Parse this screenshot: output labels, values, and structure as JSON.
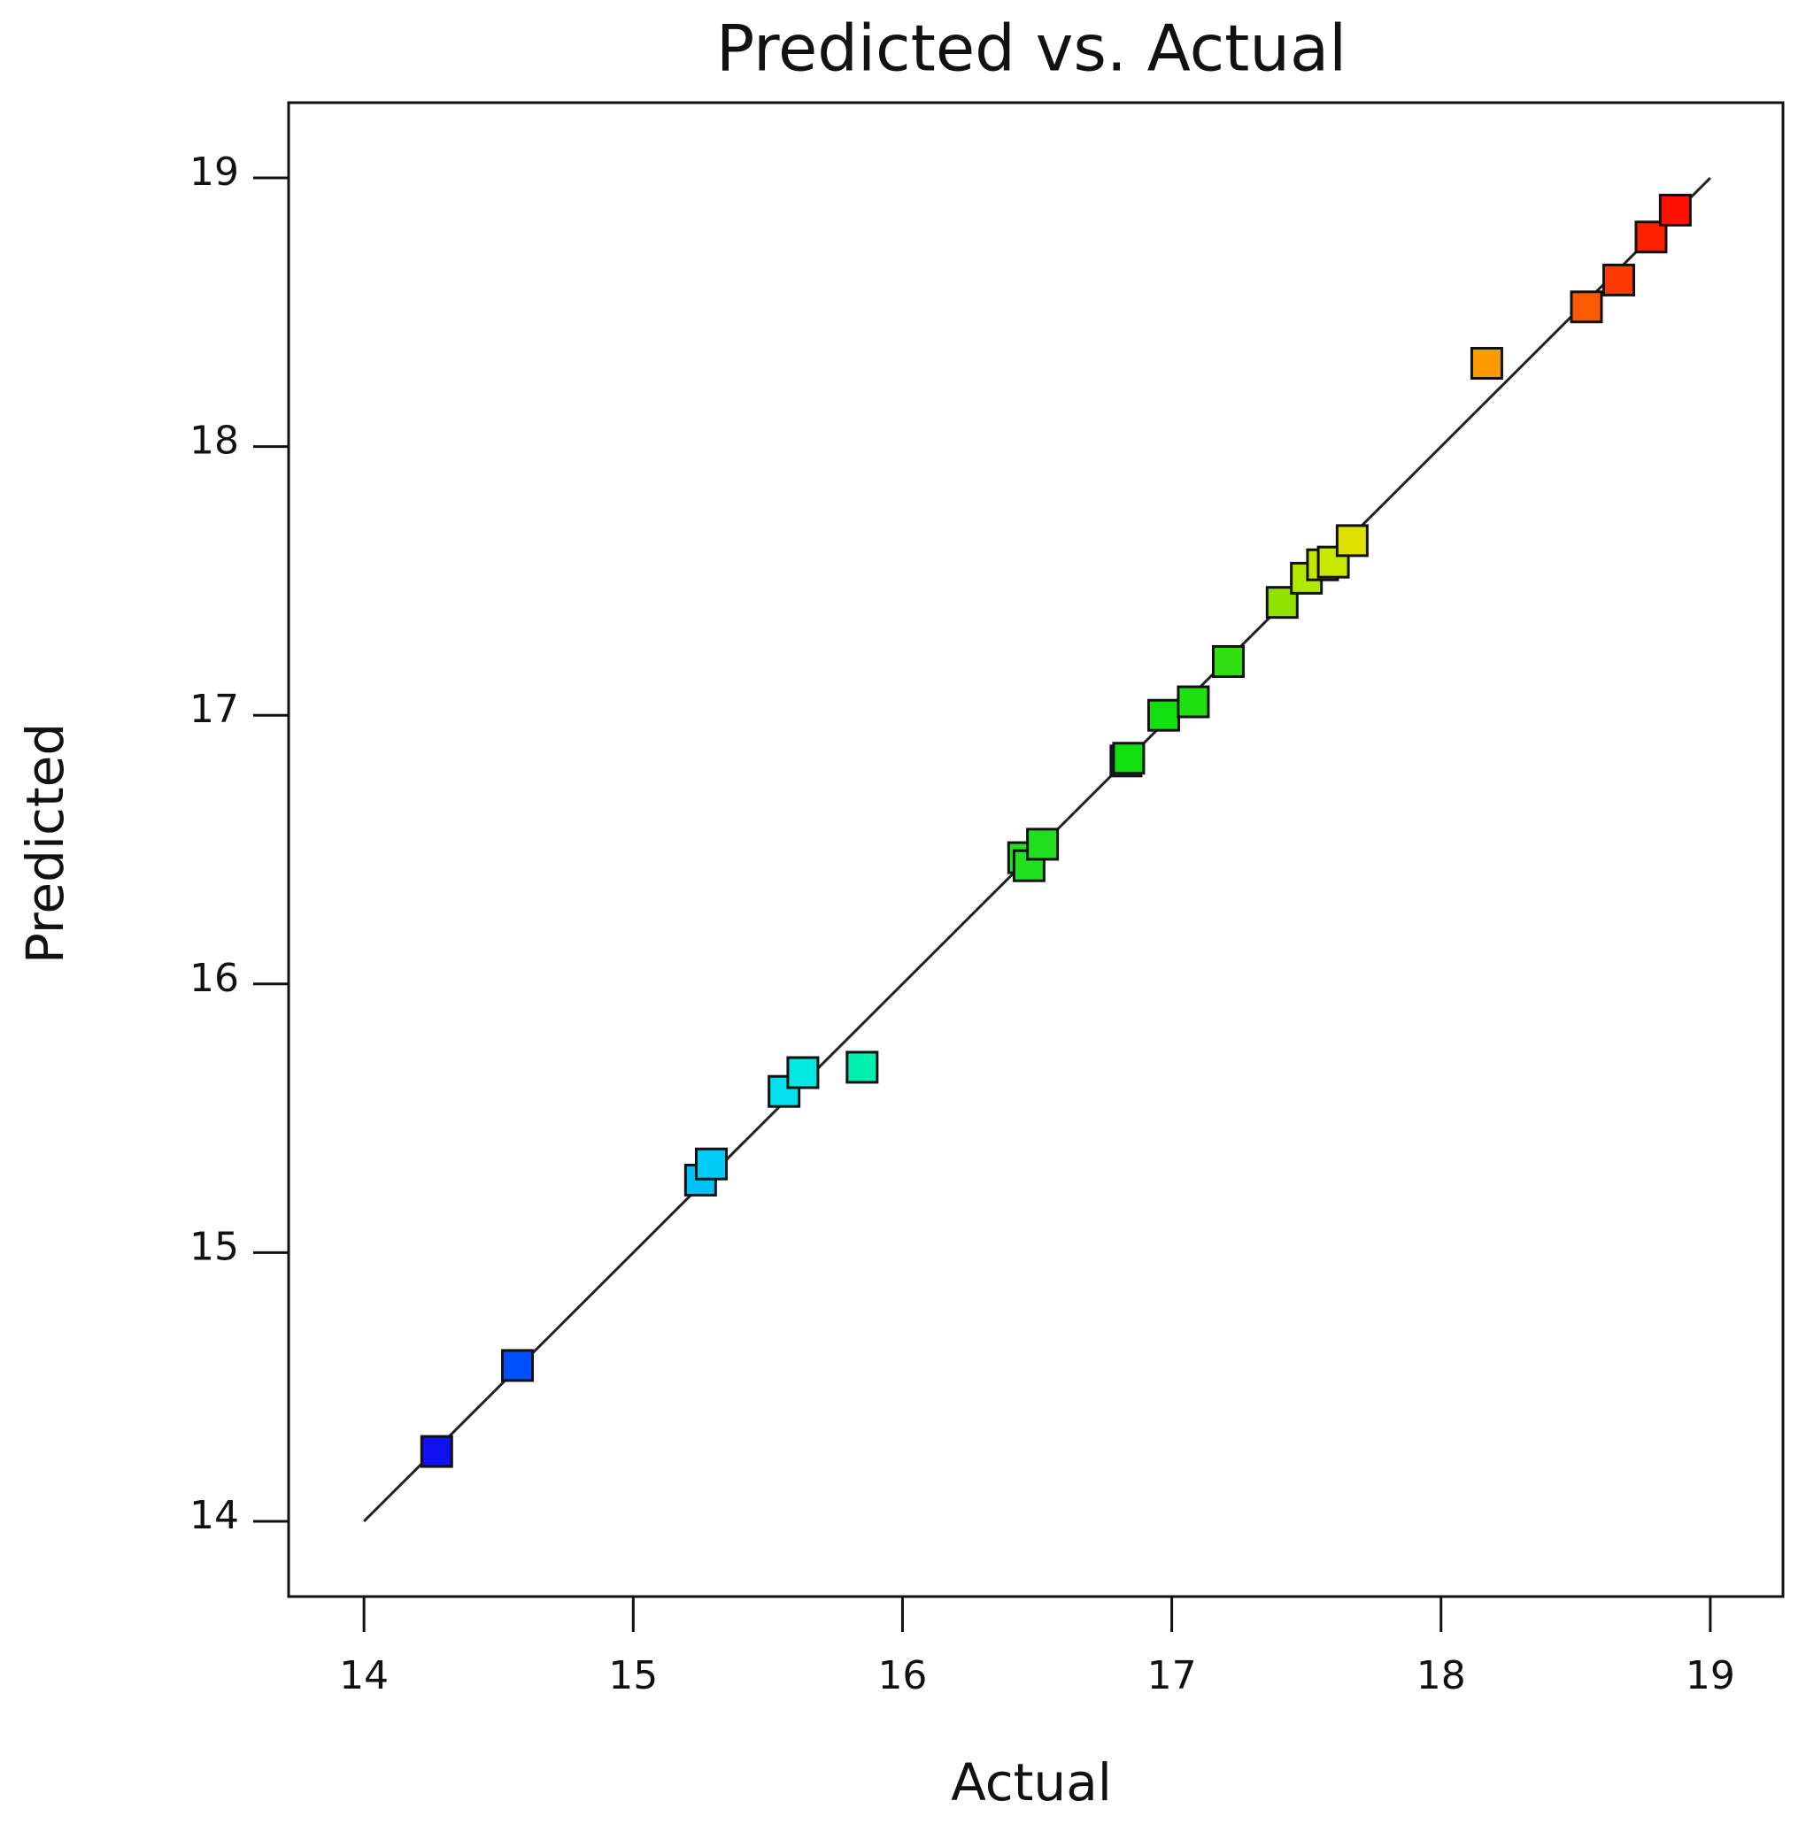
{
  "chart_data": {
    "type": "scatter",
    "title": "Predicted vs. Actual",
    "x_label": "Actual",
    "y_label": "Predicted",
    "x": [
      14.27,
      14.57,
      15.25,
      15.29,
      15.56,
      15.63,
      15.85,
      16.45,
      16.47,
      16.52,
      16.83,
      16.84,
      16.97,
      17.08,
      17.21,
      17.41,
      17.5,
      17.56,
      17.6,
      17.67,
      18.17,
      18.54,
      18.66,
      18.78,
      18.87
    ],
    "values": [
      14.26,
      14.58,
      15.27,
      15.33,
      15.6,
      15.67,
      15.69,
      16.47,
      16.44,
      16.52,
      16.83,
      16.84,
      17.0,
      17.05,
      17.2,
      17.42,
      17.51,
      17.56,
      17.57,
      17.65,
      18.31,
      18.52,
      18.62,
      18.78,
      18.88
    ],
    "colors": [
      "#1010f0",
      "#0050ff",
      "#00c0f8",
      "#00ccf8",
      "#00e0ee",
      "#00e8e0",
      "#00f0b0",
      "#20e020",
      "#20e020",
      "#20e020",
      "#10e010",
      "#10e010",
      "#10e010",
      "#20e010",
      "#30e010",
      "#90e000",
      "#b0e800",
      "#c0e800",
      "#c8e800",
      "#e0e000",
      "#ff9a00",
      "#ff5a00",
      "#ff3a00",
      "#ff2000",
      "#ff1000"
    ],
    "reference_line": {
      "x": [
        14,
        19
      ],
      "y": [
        14,
        19
      ]
    },
    "xlim": [
      13.72,
      19.27
    ],
    "ylim": [
      13.72,
      19.28
    ],
    "xticks": [
      14,
      15,
      16,
      17,
      18,
      19
    ],
    "yticks": [
      14,
      15,
      16,
      17,
      18,
      19
    ]
  }
}
